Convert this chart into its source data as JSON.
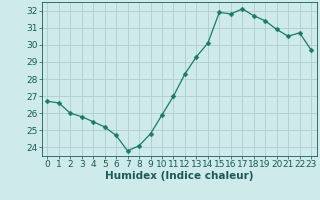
{
  "x": [
    0,
    1,
    2,
    3,
    4,
    5,
    6,
    7,
    8,
    9,
    10,
    11,
    12,
    13,
    14,
    15,
    16,
    17,
    18,
    19,
    20,
    21,
    22,
    23
  ],
  "y": [
    26.7,
    26.6,
    26.0,
    25.8,
    25.5,
    25.2,
    24.7,
    23.8,
    24.1,
    24.8,
    25.9,
    27.0,
    28.3,
    29.3,
    30.1,
    31.9,
    31.8,
    32.1,
    31.7,
    31.4,
    30.9,
    30.5,
    30.7,
    29.7
  ],
  "line_color": "#1a7a6a",
  "marker": "D",
  "marker_size": 2.5,
  "background_color": "#ceeaea",
  "grid_color": "#b0cccc",
  "xlabel": "Humidex (Indice chaleur)",
  "xlim": [
    -0.5,
    23.5
  ],
  "ylim": [
    23.5,
    32.5
  ],
  "yticks": [
    24,
    25,
    26,
    27,
    28,
    29,
    30,
    31,
    32
  ],
  "xticks": [
    0,
    1,
    2,
    3,
    4,
    5,
    6,
    7,
    8,
    9,
    10,
    11,
    12,
    13,
    14,
    15,
    16,
    17,
    18,
    19,
    20,
    21,
    22,
    23
  ],
  "tick_color": "#1a5a5a",
  "label_fontsize": 6.5,
  "axis_fontsize": 7.5
}
